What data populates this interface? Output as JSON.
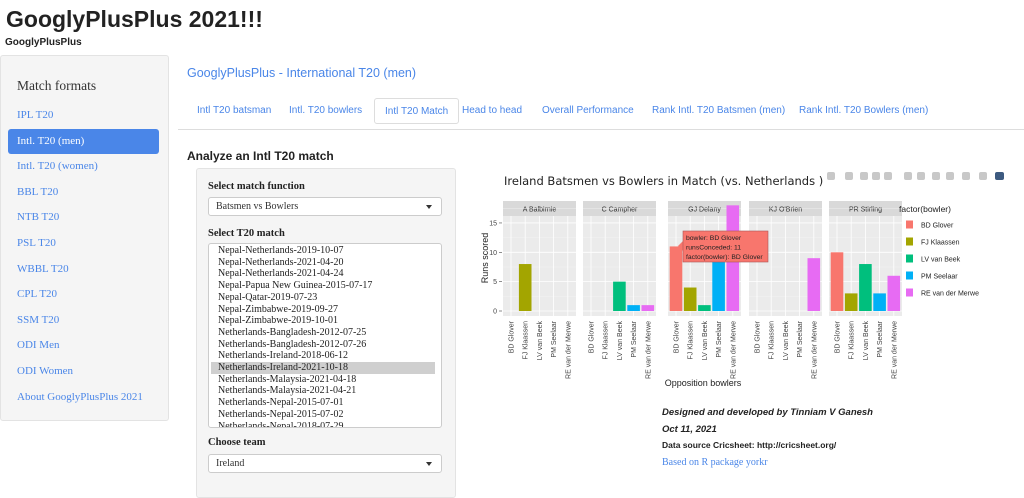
{
  "app": {
    "title": "GooglyPlusPlus 2021!!!",
    "subtitle": "GooglyPlusPlus"
  },
  "sidebar": {
    "heading": "Match formats",
    "items": [
      {
        "label": "IPL T20"
      },
      {
        "label": "Intl. T20 (men)",
        "active": true
      },
      {
        "label": "Intl. T20 (women)"
      },
      {
        "label": "BBL T20"
      },
      {
        "label": "NTB T20"
      },
      {
        "label": "PSL T20"
      },
      {
        "label": "WBBL T20"
      },
      {
        "label": "CPL T20"
      },
      {
        "label": "SSM T20"
      },
      {
        "label": "ODI Men"
      },
      {
        "label": "ODI Women"
      },
      {
        "label": "About GooglyPlusPlus 2021"
      }
    ]
  },
  "main": {
    "title": "GooglyPlusPlus - International T20 (men)",
    "tabs": [
      {
        "label": "Intl T20 batsman"
      },
      {
        "label": "Intl. T20 bowlers"
      },
      {
        "label": "Intl T20 Match",
        "active": true
      },
      {
        "label": "Head to head"
      },
      {
        "label": "Overall Performance"
      },
      {
        "label": "Rank Intl. T20 Batsmen (men)"
      },
      {
        "label": "Rank Intl. T20 Bowlers (men)"
      }
    ],
    "section_title": "Analyze an Intl T20 match"
  },
  "form": {
    "function_label": "Select match function",
    "function_value": "Batsmen vs Bowlers",
    "match_label": "Select T20 match",
    "matches": [
      "Nepal-Netherlands-2019-10-07",
      "Nepal-Netherlands-2021-04-20",
      "Nepal-Netherlands-2021-04-24",
      "Nepal-Papua New Guinea-2015-07-17",
      "Nepal-Qatar-2019-07-23",
      "Nepal-Zimbabwe-2019-09-27",
      "Nepal-Zimbabwe-2019-10-01",
      "Netherlands-Bangladesh-2012-07-25",
      "Netherlands-Bangladesh-2012-07-26",
      "Netherlands-Ireland-2018-06-12",
      "Netherlands-Ireland-2021-10-18",
      "Netherlands-Malaysia-2021-04-18",
      "Netherlands-Malaysia-2021-04-21",
      "Netherlands-Nepal-2015-07-01",
      "Netherlands-Nepal-2015-07-02",
      "Netherlands-Nepal-2018-07-29"
    ],
    "selected_match": "Netherlands-Ireland-2021-10-18",
    "team_label": "Choose team",
    "team_value": "Ireland"
  },
  "chart_data": {
    "type": "bar",
    "title": "Ireland Batsmen vs Bowlers in Match (vs. Netherlands )",
    "xlabel": "Opposition bowlers",
    "ylabel": "Runs scored",
    "ylim": [
      -0.8,
      19
    ],
    "yticks": [
      0,
      5,
      10,
      15
    ],
    "facets": [
      "A Balbirnie",
      "C Campher",
      "GJ Delany",
      "KJ O'Brien",
      "PR Stirling"
    ],
    "categories": [
      "BD Glover",
      "FJ Klaassen",
      "LV van Beek",
      "PM Seelaar",
      "RE van der Merwe"
    ],
    "colors": [
      "#F8766D",
      "#A3A500",
      "#00BF7D",
      "#00B0F6",
      "#E76BF3"
    ],
    "values": [
      [
        0,
        8,
        0,
        0,
        0
      ],
      [
        0,
        0,
        5,
        1,
        1
      ],
      [
        11,
        4,
        1,
        9,
        18
      ],
      [
        0,
        0,
        0,
        0,
        9
      ],
      [
        10,
        3,
        8,
        3,
        6
      ]
    ],
    "legend_title": "factor(bowler)",
    "legend_position": "right",
    "tooltip": [
      "bowler: BD Glover",
      "runsConceded: 11",
      "factor(bowler): BD Glover"
    ]
  },
  "credits": {
    "line1": "Designed and developed by Tinniam V Ganesh",
    "line2": "Oct 11, 2021",
    "line3": "Data source Cricsheet: http://cricsheet.org/",
    "link": "Based on R package yorkr"
  }
}
